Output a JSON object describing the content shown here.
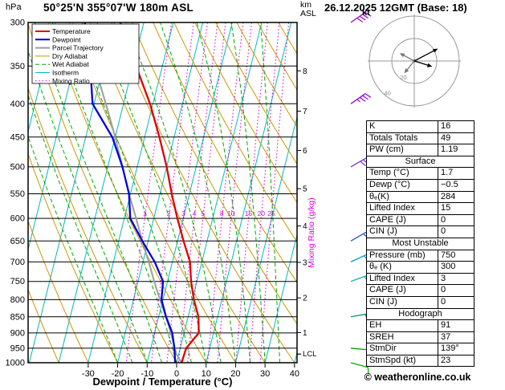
{
  "header": {
    "pressure_unit": "hPa",
    "station": "50°25'N 355°07'W 180m ASL",
    "altitude_unit_top": "km",
    "altitude_unit_bottom": "ASL",
    "datetime": "26.12.2025 12GMT (Base: 18)"
  },
  "axes": {
    "pressure_ticks": [
      300,
      350,
      400,
      450,
      500,
      550,
      600,
      650,
      700,
      750,
      800,
      850,
      900,
      950,
      1000
    ],
    "temp_ticks": [
      -30,
      -20,
      -10,
      0,
      10,
      20,
      30,
      40
    ],
    "km_ticks": [
      1,
      2,
      3,
      4,
      5,
      6,
      7,
      8
    ],
    "xlabel": "Dewpoint / Temperature (°C)",
    "right_axis_label": "Mixing Ratio (g/kg)",
    "lcl_label": "LCL"
  },
  "legend": {
    "items": [
      {
        "label": "Temperature",
        "color": "#e00000",
        "style": "solid",
        "width": 2
      },
      {
        "label": "Dewpoint",
        "color": "#0000dd",
        "style": "solid",
        "width": 2
      },
      {
        "label": "Parcel Trajectory",
        "color": "#9e9e9e",
        "style": "solid",
        "width": 2
      },
      {
        "label": "Dry Adiabat",
        "color": "#cc9900",
        "style": "solid",
        "width": 1
      },
      {
        "label": "Wet Adiabat",
        "color": "#00aa00",
        "style": "dashed",
        "width": 1
      },
      {
        "label": "Isotherm",
        "color": "#00bbbb",
        "style": "solid",
        "width": 1
      },
      {
        "label": "Mixing Ratio",
        "color": "#dd00dd",
        "style": "dotted",
        "width": 1
      }
    ]
  },
  "chart_data": {
    "type": "skewt-logp",
    "pressure_range_hpa": [
      300,
      1000
    ],
    "surface_temp_axis_range_c": [
      -50,
      40
    ],
    "temperature_profile": [
      [
        1000,
        1.7
      ],
      [
        950,
        2
      ],
      [
        900,
        5
      ],
      [
        850,
        3.5
      ],
      [
        800,
        0.5
      ],
      [
        750,
        -2
      ],
      [
        700,
        -4
      ],
      [
        650,
        -8
      ],
      [
        600,
        -12
      ],
      [
        550,
        -16
      ],
      [
        500,
        -20
      ],
      [
        450,
        -25
      ],
      [
        400,
        -31
      ],
      [
        350,
        -39
      ],
      [
        300,
        -48
      ]
    ],
    "dewpoint_profile": [
      [
        1000,
        -0.5
      ],
      [
        950,
        -2
      ],
      [
        900,
        -4
      ],
      [
        850,
        -7.5
      ],
      [
        800,
        -10.5
      ],
      [
        750,
        -11.5
      ],
      [
        700,
        -16
      ],
      [
        650,
        -22
      ],
      [
        600,
        -28
      ],
      [
        550,
        -30.5
      ],
      [
        500,
        -35
      ],
      [
        450,
        -41
      ],
      [
        400,
        -50.5
      ],
      [
        350,
        -54.5
      ],
      [
        300,
        -60
      ]
    ],
    "parcel_profile": [
      [
        1000,
        1.7
      ],
      [
        970,
        -0.8
      ],
      [
        900,
        -4.5
      ],
      [
        850,
        -7.5
      ],
      [
        800,
        -11
      ],
      [
        750,
        -14.5
      ],
      [
        700,
        -18
      ],
      [
        650,
        -22
      ],
      [
        600,
        -26
      ],
      [
        550,
        -30.5
      ],
      [
        500,
        -35
      ],
      [
        450,
        -40
      ],
      [
        400,
        -46
      ],
      [
        350,
        -53
      ],
      [
        300,
        -61
      ]
    ],
    "mixing_ratio_lines_gkg": [
      1,
      2,
      3,
      4,
      5,
      8,
      10,
      15,
      20,
      25
    ],
    "lcl_pressure_hpa": 970,
    "wind_barbs": [
      {
        "p": 300,
        "speed_kt": 40,
        "dir_deg": 55,
        "color": "#9900cc"
      },
      {
        "p": 400,
        "speed_kt": 35,
        "dir_deg": 55,
        "color": "#9900cc"
      },
      {
        "p": 500,
        "speed_kt": 30,
        "dir_deg": 60,
        "color": "#7733cc"
      },
      {
        "p": 650,
        "speed_kt": 20,
        "dir_deg": 60,
        "color": "#2255dd"
      },
      {
        "p": 700,
        "speed_kt": 20,
        "dir_deg": 65,
        "color": "#0099cc"
      },
      {
        "p": 750,
        "speed_kt": 15,
        "dir_deg": 70,
        "color": "#00b0b0"
      },
      {
        "p": 850,
        "speed_kt": 15,
        "dir_deg": 80,
        "color": "#00a060"
      },
      {
        "p": 950,
        "speed_kt": 10,
        "dir_deg": 95,
        "color": "#00a000"
      },
      {
        "p": 1000,
        "speed_kt": 10,
        "dir_deg": 105,
        "color": "#00b000"
      }
    ]
  },
  "hodograph": {
    "unit_label": "kt",
    "rings_kt": [
      20,
      40
    ],
    "vectors": [
      {
        "dx_kt": 21,
        "dy_kt": -11,
        "color": "#000000"
      },
      {
        "dx_kt": 16,
        "dy_kt": 5,
        "color": "#000000"
      },
      {
        "dx_kt": -13,
        "dy_kt": -7,
        "color": "#777777"
      },
      {
        "dx_kt": -9,
        "dy_kt": 11,
        "color": "#777777"
      }
    ]
  },
  "table": {
    "rows": [
      {
        "label": "K",
        "value": "16"
      },
      {
        "label": "Totals Totals",
        "value": "49"
      },
      {
        "label": "PW (cm)",
        "value": "1.19"
      }
    ],
    "sections": [
      {
        "header": "Surface",
        "rows": [
          {
            "label": "Temp (°C)",
            "value": "1.7"
          },
          {
            "label": "Dewp (°C)",
            "value": "−0.5"
          },
          {
            "label": "θₑ(K)",
            "value": "284"
          },
          {
            "label": "Lifted Index",
            "value": "15"
          },
          {
            "label": "CAPE (J)",
            "value": "0"
          },
          {
            "label": "CIN (J)",
            "value": "0"
          }
        ]
      },
      {
        "header": "Most Unstable",
        "rows": [
          {
            "label": "Pressure (mb)",
            "value": "750"
          },
          {
            "label": "θₑ (K)",
            "value": "300"
          },
          {
            "label": "Lifted Index",
            "value": "3"
          },
          {
            "label": "CAPE (J)",
            "value": "0"
          },
          {
            "label": "CIN (J)",
            "value": "0"
          }
        ]
      },
      {
        "header": "Hodograph",
        "rows": [
          {
            "label": "EH",
            "value": "91"
          },
          {
            "label": "SREH",
            "value": "37"
          },
          {
            "label": "StmDir",
            "value": "139°"
          },
          {
            "label": "StmSpd (kt)",
            "value": "23"
          }
        ]
      }
    ]
  },
  "footer": {
    "copyright": "© weatheronline.co.uk"
  },
  "colors": {
    "temperature": "#e00000",
    "dewpoint": "#0000dd",
    "parcel": "#9e9e9e",
    "dry_adiabat": "#cc9900",
    "wet_adiabat": "#00aa00",
    "isotherm": "#00bbbb",
    "mixing_ratio": "#dd00dd",
    "axis": "#000000"
  }
}
